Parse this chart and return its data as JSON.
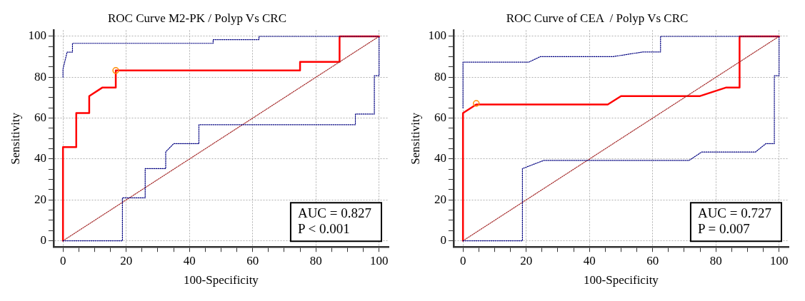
{
  "chart_data": [
    {
      "type": "line",
      "title": "ROC Curve M2-PK / Polyp Vs CRC",
      "xlabel": "100-Specificity",
      "ylabel": "Sensitivity",
      "xlim": [
        -3,
        103
      ],
      "ylim": [
        -3,
        103
      ],
      "xticks": [
        0,
        {
          "value": 5,
          "label": null
        },
        {
          "value": 10,
          "label": null
        },
        {
          "value": 15,
          "label": null
        },
        20,
        {
          "value": 25,
          "label": null
        },
        {
          "value": 30,
          "label": null
        },
        {
          "value": 35,
          "label": null
        },
        40,
        {
          "value": 45,
          "label": null
        },
        {
          "value": 50,
          "label": null
        },
        {
          "value": 55,
          "label": null
        },
        60,
        {
          "value": 65,
          "label": null
        },
        {
          "value": 70,
          "label": null
        },
        {
          "value": 75,
          "label": null
        },
        80,
        {
          "value": 85,
          "label": null
        },
        {
          "value": 90,
          "label": null
        },
        {
          "value": 95,
          "label": null
        },
        100
      ],
      "yticks": [
        0,
        {
          "value": 5,
          "label": null
        },
        {
          "value": 10,
          "label": null
        },
        {
          "value": 15,
          "label": null
        },
        20,
        {
          "value": 25,
          "label": null
        },
        {
          "value": 30,
          "label": null
        },
        {
          "value": 35,
          "label": null
        },
        40,
        {
          "value": 45,
          "label": null
        },
        {
          "value": 50,
          "label": null
        },
        {
          "value": 55,
          "label": null
        },
        60,
        {
          "value": 65,
          "label": null
        },
        {
          "value": 70,
          "label": null
        },
        {
          "value": 75,
          "label": null
        },
        80,
        {
          "value": 85,
          "label": null
        },
        {
          "value": 90,
          "label": null
        },
        {
          "value": 95,
          "label": null
        },
        100
      ],
      "grid": true,
      "legend": false,
      "annotations": [
        "AUC = 0.827",
        "P < 0.001"
      ],
      "series": [
        {
          "type": "line",
          "color": "#000080",
          "line_style": "dotted",
          "marker": "none",
          "x": [
            0,
            0,
            1.3,
            3,
            3,
            47.5,
            47.5,
            62,
            62,
            100
          ],
          "values": [
            80,
            84,
            92.3,
            92.3,
            96.6,
            96.6,
            98.4,
            98.4,
            100,
            100
          ]
        },
        {
          "type": "line",
          "color": "#000080",
          "line_style": "dotted",
          "marker": "none",
          "x": [
            0,
            18.8,
            18.8,
            26,
            26,
            32.5,
            32.5,
            35,
            43,
            43,
            92.5,
            92.5,
            98.5,
            98.5,
            100,
            100
          ],
          "values": [
            0,
            0,
            21,
            21,
            35.3,
            35.3,
            43.5,
            47.5,
            47.5,
            56.8,
            56.8,
            62,
            62,
            80.8,
            80.8,
            100
          ]
        },
        {
          "type": "line",
          "color": "#a52a2a",
          "line_style": "dotted",
          "marker": "none",
          "x": [
            0,
            100
          ],
          "values": [
            0,
            100
          ]
        },
        {
          "type": "line",
          "color": "#ff0000",
          "line_style": "solid",
          "marker": "none",
          "x": [
            0,
            0,
            4.2,
            4.2,
            8.3,
            8.3,
            12.5,
            16.7,
            16.7,
            75,
            75,
            87.5,
            87.5,
            100
          ],
          "values": [
            0,
            45.8,
            45.8,
            62.5,
            62.5,
            70.8,
            75,
            75,
            83.3,
            83.3,
            87.5,
            87.5,
            100,
            100
          ]
        },
        {
          "type": "scatter",
          "color": "#ff8c00",
          "marker": "circle",
          "x": [
            16.7
          ],
          "values": [
            83.3
          ]
        }
      ]
    },
    {
      "type": "line",
      "title": "ROC Curve of CEA  / Polyp Vs CRC",
      "xlabel": "100-Specificity",
      "ylabel": "Sensitivity",
      "xlim": [
        -3,
        103
      ],
      "ylim": [
        -3,
        103
      ],
      "xticks": [
        0,
        {
          "value": 5,
          "label": null
        },
        {
          "value": 10,
          "label": null
        },
        {
          "value": 15,
          "label": null
        },
        20,
        {
          "value": 25,
          "label": null
        },
        {
          "value": 30,
          "label": null
        },
        {
          "value": 35,
          "label": null
        },
        40,
        {
          "value": 45,
          "label": null
        },
        {
          "value": 50,
          "label": null
        },
        {
          "value": 55,
          "label": null
        },
        60,
        {
          "value": 65,
          "label": null
        },
        {
          "value": 70,
          "label": null
        },
        {
          "value": 75,
          "label": null
        },
        80,
        {
          "value": 85,
          "label": null
        },
        {
          "value": 90,
          "label": null
        },
        {
          "value": 95,
          "label": null
        },
        100
      ],
      "yticks": [
        0,
        {
          "value": 5,
          "label": null
        },
        {
          "value": 10,
          "label": null
        },
        {
          "value": 15,
          "label": null
        },
        20,
        {
          "value": 25,
          "label": null
        },
        {
          "value": 30,
          "label": null
        },
        {
          "value": 35,
          "label": null
        },
        40,
        {
          "value": 45,
          "label": null
        },
        {
          "value": 50,
          "label": null
        },
        {
          "value": 55,
          "label": null
        },
        60,
        {
          "value": 65,
          "label": null
        },
        {
          "value": 70,
          "label": null
        },
        {
          "value": 75,
          "label": null
        },
        80,
        {
          "value": 85,
          "label": null
        },
        {
          "value": 90,
          "label": null
        },
        {
          "value": 95,
          "label": null
        },
        100
      ],
      "grid": true,
      "legend": false,
      "annotations": [
        "AUC = 0.727",
        "P = 0.007"
      ],
      "series": [
        {
          "type": "line",
          "color": "#000080",
          "line_style": "dotted",
          "marker": "none",
          "x": [
            0,
            0,
            20.8,
            24.5,
            47.5,
            57,
            62.5,
            62.5,
            100
          ],
          "values": [
            65,
            87.4,
            87.4,
            90.1,
            90.1,
            92.4,
            92.4,
            100,
            100
          ]
        },
        {
          "type": "line",
          "color": "#000080",
          "line_style": "dotted",
          "marker": "none",
          "x": [
            0,
            18.8,
            18.8,
            25.5,
            71.5,
            75.5,
            92.5,
            95.8,
            98.5,
            98.5,
            100,
            100
          ],
          "values": [
            0,
            0,
            35.3,
            39.3,
            39.3,
            43.4,
            43.4,
            47.5,
            47.5,
            80.8,
            80.8,
            100
          ]
        },
        {
          "type": "line",
          "color": "#a52a2a",
          "line_style": "dotted",
          "marker": "none",
          "x": [
            0,
            100
          ],
          "values": [
            0,
            100
          ]
        },
        {
          "type": "line",
          "color": "#ff0000",
          "line_style": "solid",
          "marker": "none",
          "x": [
            0,
            0,
            4.2,
            45.8,
            50,
            75,
            83.3,
            87.5,
            87.5,
            100
          ],
          "values": [
            0,
            62.5,
            66.7,
            66.7,
            70.8,
            70.8,
            75,
            75,
            100,
            100
          ]
        },
        {
          "type": "scatter",
          "color": "#ff8c00",
          "marker": "circle",
          "x": [
            4.2
          ],
          "values": [
            67.2
          ]
        }
      ]
    }
  ]
}
